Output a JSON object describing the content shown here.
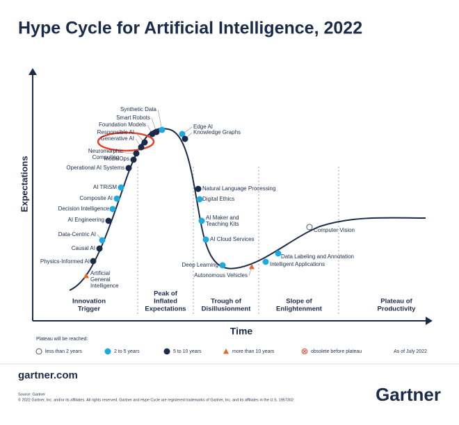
{
  "title": "Hype Cycle for Artificial Intelligence, 2022",
  "axes": {
    "y": "Expectations",
    "x": "Time"
  },
  "phases": [
    [
      "Innovation",
      "Trigger"
    ],
    [
      "Peak of",
      "Inflated",
      "Expectations"
    ],
    [
      "Trough of",
      "Disillusionment"
    ],
    [
      "Slope of",
      "Enlightenment"
    ],
    [
      "Plateau of",
      "Productivity"
    ]
  ],
  "nodes": [
    {
      "label": [
        "Artificial",
        "General",
        "Intelligence"
      ],
      "plateau": 3
    },
    {
      "label": [
        "Physics-Informed AI"
      ],
      "plateau": 2
    },
    {
      "label": [
        "Causal AI"
      ],
      "plateau": 2
    },
    {
      "label": [
        "Data-Centric AI"
      ],
      "plateau": 1
    },
    {
      "label": [
        "AI Engineering"
      ],
      "plateau": 2
    },
    {
      "label": [
        "Decision Intelligence"
      ],
      "plateau": 1
    },
    {
      "label": [
        "Composite AI"
      ],
      "plateau": 1
    },
    {
      "label": [
        "AI TRiSM"
      ],
      "plateau": 1
    },
    {
      "label": [
        "Operational AI Systems"
      ],
      "plateau": 2
    },
    {
      "label": [
        "ModelOps"
      ],
      "plateau": 2
    },
    {
      "label": [
        "Neuromorphic",
        "Computing"
      ],
      "plateau": 2
    },
    {
      "label": [
        "Generative AI"
      ],
      "plateau": 2
    },
    {
      "label": [
        "Responsible AI"
      ],
      "plateau": 2
    },
    {
      "label": [
        "Foundation Models"
      ],
      "plateau": 2
    },
    {
      "label": [
        "Smart Robots"
      ],
      "plateau": 2
    },
    {
      "label": [
        "Synthetic Data"
      ],
      "plateau": 1
    },
    {
      "label": [
        "Edge AI"
      ],
      "plateau": 1
    },
    {
      "label": [
        "Knowledge Graphs"
      ],
      "plateau": 2
    },
    {
      "label": [
        "Natural Language Processing"
      ],
      "plateau": 2
    },
    {
      "label": [
        "Digital Ethics"
      ],
      "plateau": 1
    },
    {
      "label": [
        "AI Maker and",
        "Teaching Kits"
      ],
      "plateau": 1
    },
    {
      "label": [
        "AI Cloud Services"
      ],
      "plateau": 1
    },
    {
      "label": [
        "Deep Learning"
      ],
      "plateau": 1
    },
    {
      "label": [
        "Autonomous Vehicles"
      ],
      "plateau": 3
    },
    {
      "label": [
        "Intelligent Applications"
      ],
      "plateau": 1
    },
    {
      "label": [
        "Data Labeling and Annotation"
      ],
      "plateau": 1
    },
    {
      "label": [
        "Computer Vision"
      ],
      "plateau": 0
    }
  ],
  "legend": {
    "title": "Plateau will be reached:",
    "items": [
      "less than 2 years",
      "2 to 5 years",
      "5 to 10 years",
      "more than 10 years",
      "obsolete before plateau"
    ],
    "date": "As of July 2022"
  },
  "footer": {
    "site": "gartner.com",
    "source": "Source: Gartner",
    "copyright": "© 2022 Gartner, Inc. and/or its affiliates. All rights reserved. Gartner and Hype Cycle are registered trademarks of Gartner, Inc. and its affiliates in the U.S. 1957302",
    "logo": "Gartner"
  }
}
